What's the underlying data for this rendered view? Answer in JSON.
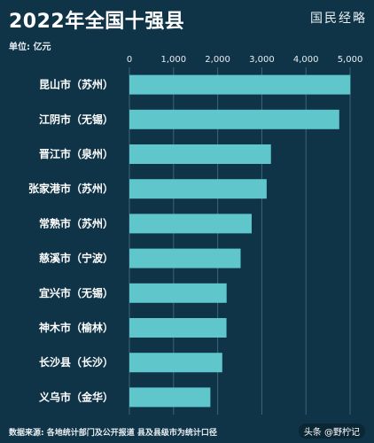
{
  "header": {
    "title": "2022年全国十强县",
    "brand": "国民经略",
    "unit": "单位: 亿元"
  },
  "footer": {
    "source": "数据来源: 各地统计部门及公开报道  县及县级市为统计口径",
    "watermark": "头条 @野柠记"
  },
  "colors": {
    "background": "#0f3347",
    "bar": "#5fc6cb",
    "grid": "#3e6478"
  },
  "chart_data": {
    "type": "bar",
    "orientation": "horizontal",
    "categories": [
      "昆山市（苏州）",
      "江阴市（无锡）",
      "晋江市（泉州）",
      "张家港市（苏州）",
      "常熟市（苏州）",
      "慈溪市（宁波）",
      "宜兴市（无锡）",
      "神木市（榆林）",
      "长沙县（长沙）",
      "义乌市（金华）"
    ],
    "values": [
      5006,
      4754,
      3207,
      3110,
      2770,
      2520,
      2203,
      2200,
      2104,
      1835
    ],
    "x_ticks": [
      "0",
      "1,000",
      "2,000",
      "3,000",
      "4,000",
      "5,000"
    ],
    "xlim": [
      0,
      5100
    ],
    "grid": true,
    "axis_position": "top"
  }
}
